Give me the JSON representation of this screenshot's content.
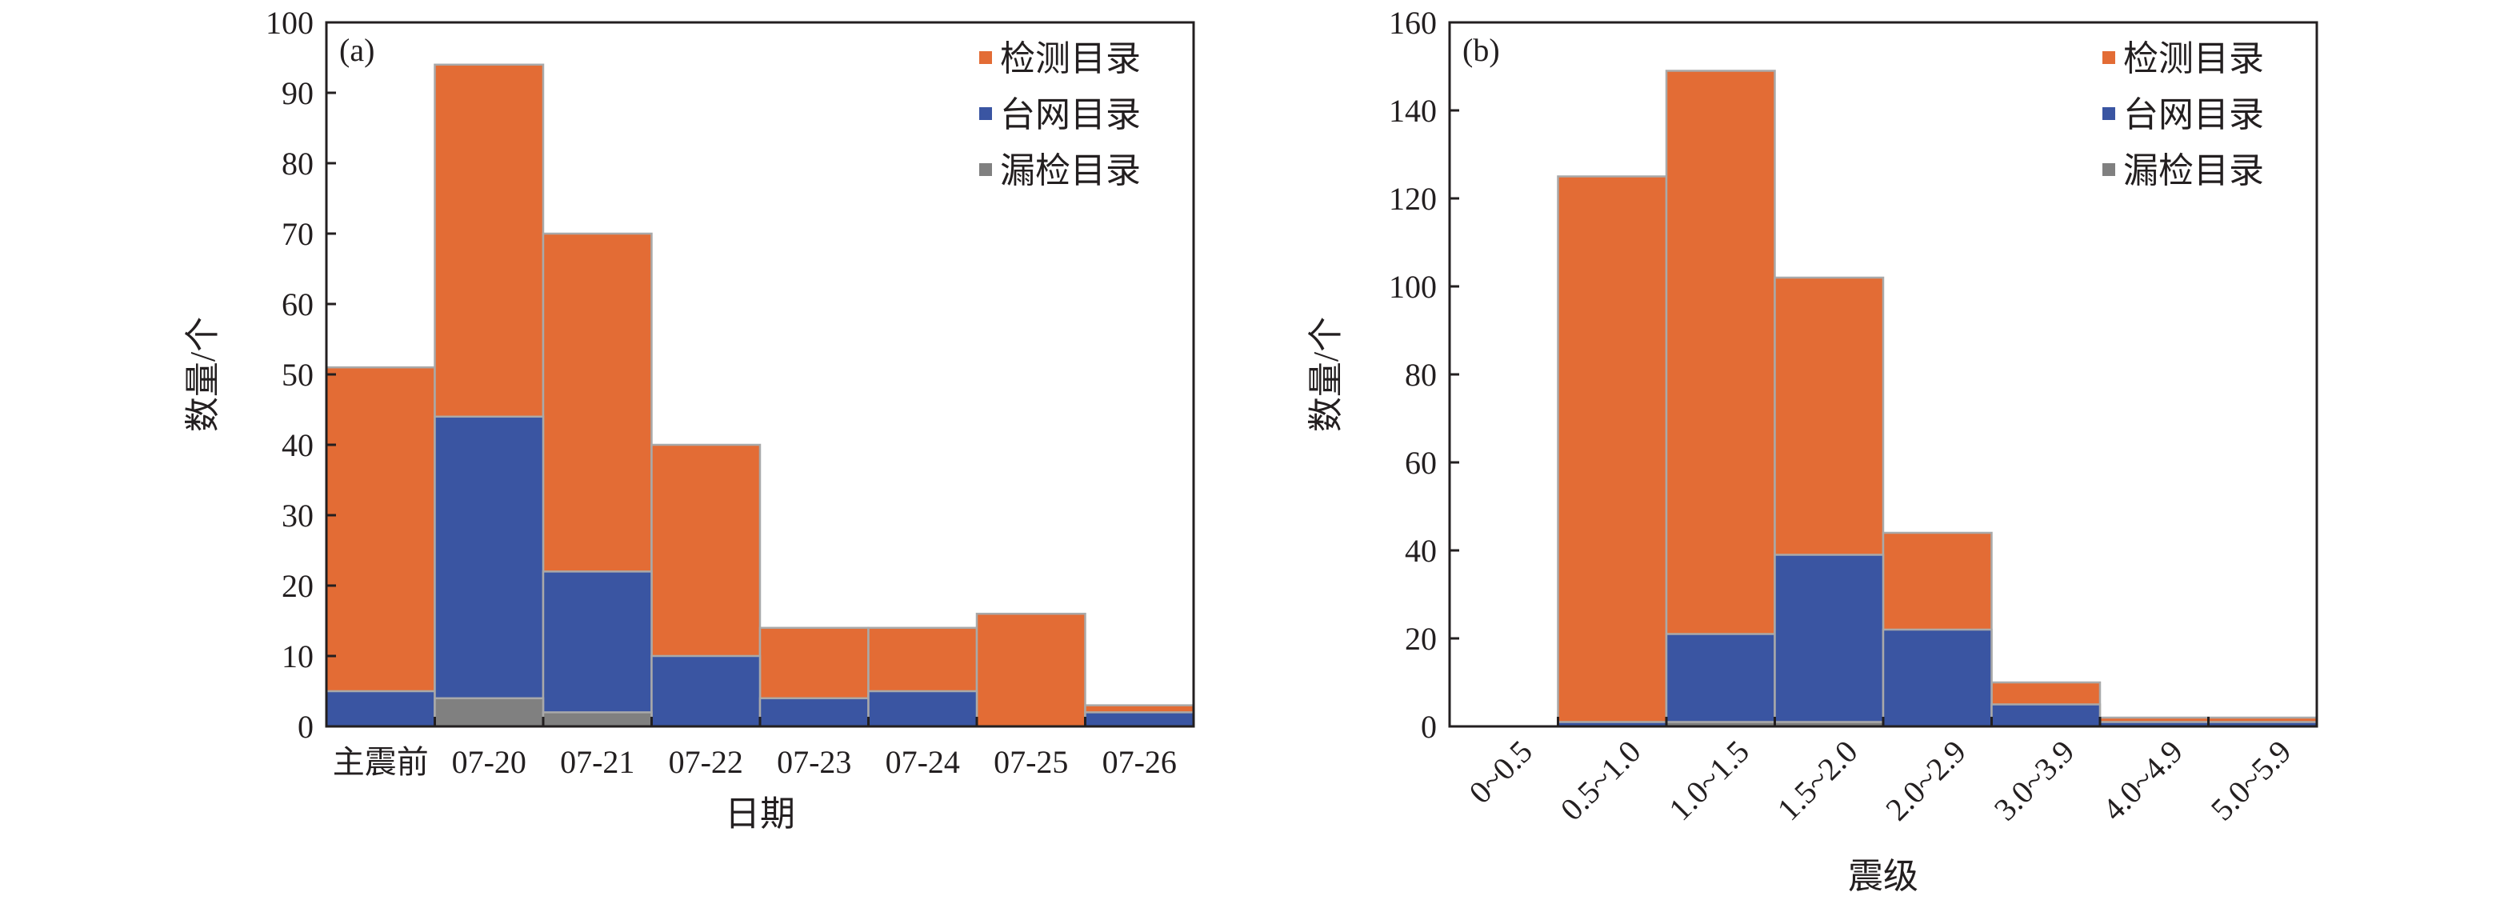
{
  "colors": {
    "detected": "#e36c35",
    "network": "#3a55a2",
    "missed": "#808080",
    "edge": "#a9a9a9",
    "axis": "#231f20"
  },
  "chart_data": [
    {
      "type": "bar",
      "stacked": "overlay",
      "panel_label": "(a)",
      "xlabel": "日期",
      "ylabel": "数量/个",
      "ylim": [
        0,
        100
      ],
      "yticks": [
        0,
        10,
        20,
        30,
        40,
        50,
        60,
        70,
        80,
        90,
        100
      ],
      "categories": [
        "主震前",
        "07-20",
        "07-21",
        "07-22",
        "07-23",
        "07-24",
        "07-25",
        "07-26"
      ],
      "legend_position": "top-right",
      "series": [
        {
          "name": "检测目录",
          "color_key": "detected",
          "values": [
            51,
            94,
            70,
            40,
            14,
            14,
            16,
            3
          ]
        },
        {
          "name": "台网目录",
          "color_key": "network",
          "values": [
            5,
            44,
            22,
            10,
            4,
            5,
            0,
            2
          ]
        },
        {
          "name": "漏检目录",
          "color_key": "missed",
          "values": [
            0,
            4,
            2,
            0,
            0,
            0,
            0,
            0
          ]
        }
      ]
    },
    {
      "type": "bar",
      "stacked": "overlay",
      "panel_label": "(b)",
      "xlabel": "震级",
      "ylabel": "数量/个",
      "ylim": [
        0,
        160
      ],
      "yticks": [
        0,
        20,
        40,
        60,
        80,
        100,
        120,
        140,
        160
      ],
      "categories": [
        "0~0.5",
        "0.5~1.0",
        "1.0~1.5",
        "1.5~2.0",
        "2.0~2.9",
        "3.0~3.9",
        "4.0~4.9",
        "5.0~5.9"
      ],
      "legend_position": "top-right",
      "series": [
        {
          "name": "检测目录",
          "color_key": "detected",
          "values": [
            0,
            125,
            149,
            102,
            44,
            10,
            2,
            2
          ]
        },
        {
          "name": "台网目录",
          "color_key": "network",
          "values": [
            0,
            1,
            21,
            39,
            22,
            5,
            1,
            1
          ]
        },
        {
          "name": "漏检目录",
          "color_key": "missed",
          "values": [
            0,
            0,
            1,
            1,
            0,
            0,
            0,
            0
          ]
        }
      ]
    }
  ]
}
